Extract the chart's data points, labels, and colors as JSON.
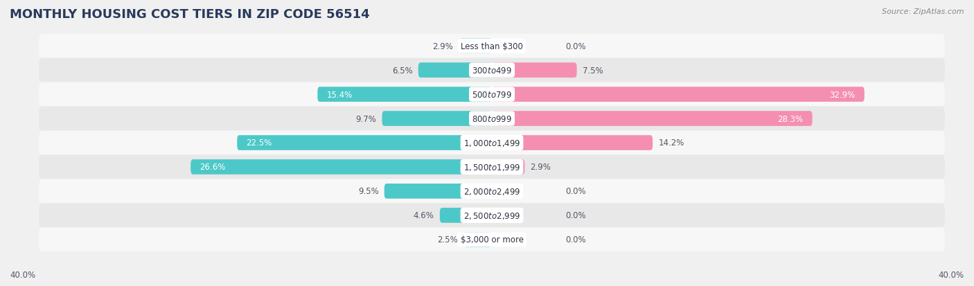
{
  "title": "MONTHLY HOUSING COST TIERS IN ZIP CODE 56514",
  "source": "Source: ZipAtlas.com",
  "categories": [
    "Less than $300",
    "$300 to $499",
    "$500 to $799",
    "$800 to $999",
    "$1,000 to $1,499",
    "$1,500 to $1,999",
    "$2,000 to $2,499",
    "$2,500 to $2,999",
    "$3,000 or more"
  ],
  "owner_values": [
    2.9,
    6.5,
    15.4,
    9.7,
    22.5,
    26.6,
    9.5,
    4.6,
    2.5
  ],
  "renter_values": [
    0.0,
    7.5,
    32.9,
    28.3,
    14.2,
    2.9,
    0.0,
    0.0,
    0.0
  ],
  "owner_color": "#4DC8C8",
  "renter_color": "#F48FB1",
  "axis_max": 40.0,
  "bg_light": "#f7f7f7",
  "bg_dark": "#e8e8e8",
  "fig_bg": "#f0f0f0",
  "title_color": "#2a3a5c",
  "title_fontsize": 13,
  "source_fontsize": 8,
  "bar_label_fontsize": 8.5,
  "cat_label_fontsize": 8.5,
  "axis_label_fontsize": 8.5,
  "legend_fontsize": 9
}
